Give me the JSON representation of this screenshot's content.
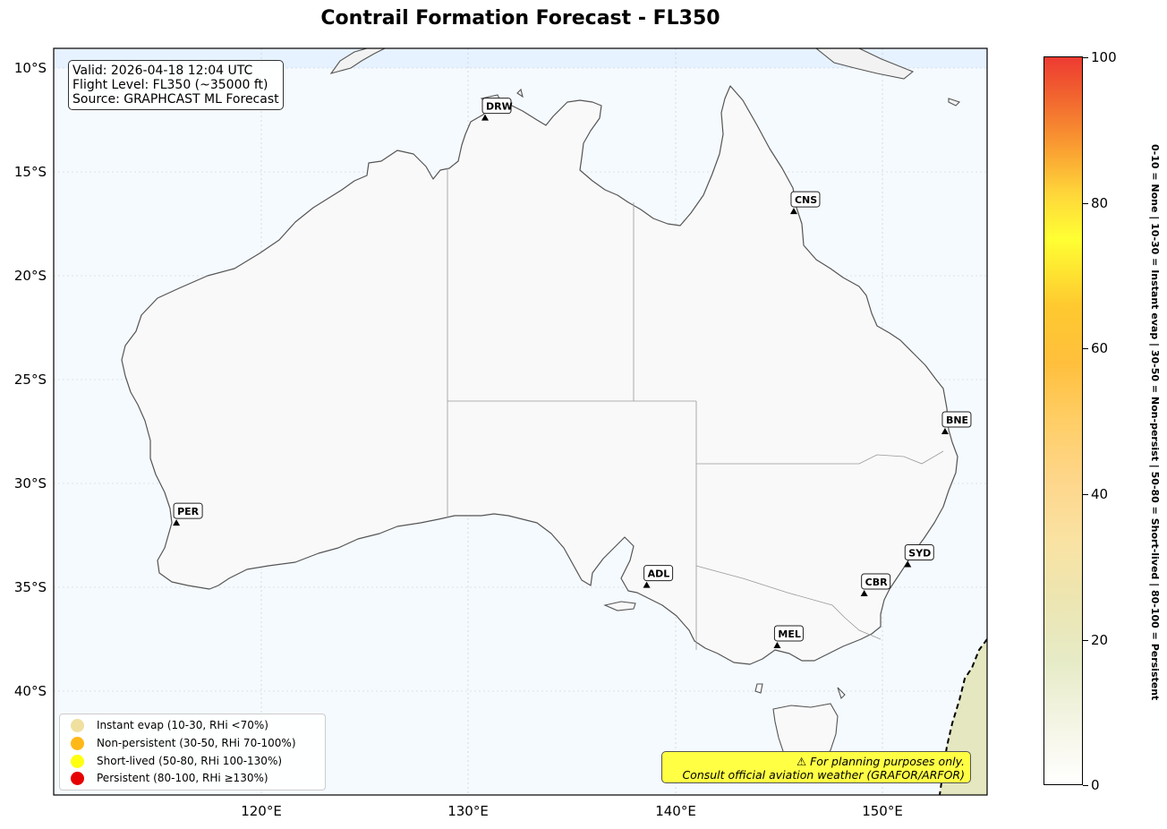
{
  "title": "Contrail Formation Forecast - FL350",
  "info": {
    "valid": "Valid: 2026-04-18 12:04 UTC",
    "flight_level": "Flight Level: FL350 (~35000 ft)",
    "source": "Source: GRAPHCAST ML Forecast"
  },
  "axes": {
    "lat_ticks": [
      "10°S",
      "15°S",
      "20°S",
      "25°S",
      "30°S",
      "35°S",
      "40°S"
    ],
    "lon_ticks": [
      "120°E",
      "130°E",
      "140°E",
      "150°E"
    ],
    "lon_range": [
      110,
      155
    ],
    "lat_range": [
      -45,
      -9
    ]
  },
  "cities": [
    {
      "code": "DRW",
      "lon": 130.8,
      "lat": -12.4
    },
    {
      "code": "CNS",
      "lon": 145.7,
      "lat": -16.9
    },
    {
      "code": "BNE",
      "lon": 153.0,
      "lat": -27.5
    },
    {
      "code": "PER",
      "lon": 115.9,
      "lat": -31.9
    },
    {
      "code": "ADL",
      "lon": 138.6,
      "lat": -34.9
    },
    {
      "code": "SYD",
      "lon": 151.2,
      "lat": -33.9
    },
    {
      "code": "CBR",
      "lon": 149.1,
      "lat": -35.3
    },
    {
      "code": "MEL",
      "lon": 144.9,
      "lat": -37.8
    }
  ],
  "legend": [
    {
      "label": "Instant evap (10-30, RHi <70%)",
      "color": "#f0e0a0"
    },
    {
      "label": "Non-persistent (30-50, RHi 70-100%)",
      "color": "#ffb817"
    },
    {
      "label": "Short-lived (50-80, RHi 100-130%)",
      "color": "#ffff10"
    },
    {
      "label": "Persistent (80-100, RHi ≥130%)",
      "color": "#e60000"
    }
  ],
  "disclaimer": {
    "line1": "⚠ For planning purposes only.",
    "line2": "Consult official aviation weather (GRAFOR/ARFOR)"
  },
  "colorbar": {
    "ticks": [
      "0",
      "20",
      "40",
      "60",
      "80",
      "100"
    ],
    "range": [
      0,
      100
    ],
    "label": "0-10 = None  |  10-30 = Instant evap  |  30-50 = Non-persist  |  50-80 = Short-lived  |  80-100 = Persistent"
  }
}
